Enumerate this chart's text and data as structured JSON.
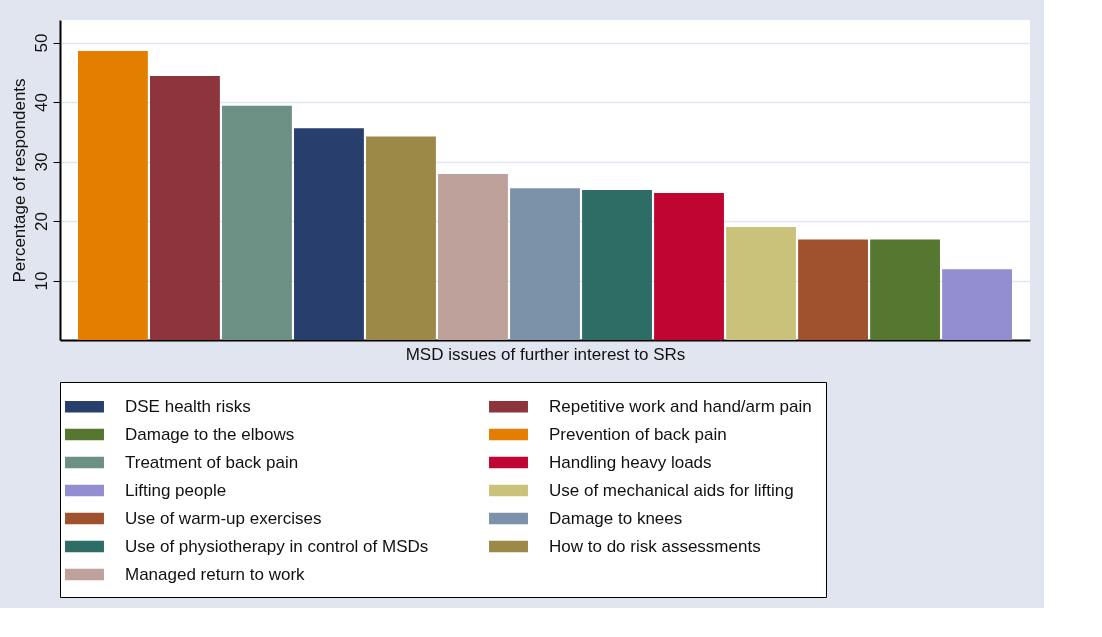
{
  "chart_data": {
    "type": "bar",
    "xlabel": "MSD issues of further interest to SRs",
    "ylabel": "Percentage of respondents",
    "categories": [
      null,
      null,
      null,
      null,
      null,
      null,
      null,
      null,
      null,
      null,
      null,
      null,
      null
    ],
    "ylim": [
      0,
      53.8
    ],
    "yticks": [
      10,
      20,
      30,
      40,
      50
    ],
    "grid": "y",
    "legend": "bottom",
    "series": [
      {
        "name": "DSE health risks",
        "color": "#283f6d",
        "values": [
          null,
          null,
          null,
          35.6,
          null,
          null,
          null,
          null,
          null,
          null,
          null,
          null,
          null
        ]
      },
      {
        "name": "Repetitive work and hand/arm pain",
        "color": "#8e343d",
        "values": [
          null,
          44.4,
          null,
          null,
          null,
          null,
          null,
          null,
          null,
          null,
          null,
          null,
          null
        ]
      },
      {
        "name": "Damage to the elbows",
        "color": "#56772f",
        "values": [
          null,
          null,
          null,
          null,
          null,
          null,
          null,
          null,
          null,
          null,
          null,
          16.9,
          null
        ]
      },
      {
        "name": "Prevention of back pain",
        "color": "#e37e00",
        "values": [
          48.6,
          null,
          null,
          null,
          null,
          null,
          null,
          null,
          null,
          null,
          null,
          null,
          null
        ]
      },
      {
        "name": "Treatment of back pain",
        "color": "#6d9085",
        "values": [
          null,
          null,
          39.4,
          null,
          null,
          null,
          null,
          null,
          null,
          null,
          null,
          null,
          null
        ]
      },
      {
        "name": "Handling heavy loads",
        "color": "#c10532",
        "values": [
          null,
          null,
          null,
          null,
          null,
          null,
          null,
          null,
          24.7,
          null,
          null,
          null,
          null
        ]
      },
      {
        "name": "Lifting people",
        "color": "#938dd2",
        "values": [
          null,
          null,
          null,
          null,
          null,
          null,
          null,
          null,
          null,
          null,
          null,
          null,
          11.9
        ]
      },
      {
        "name": "Use of mechanical aids for lifting",
        "color": "#cac27b",
        "values": [
          null,
          null,
          null,
          null,
          null,
          null,
          null,
          null,
          null,
          19.0,
          null,
          null,
          null
        ]
      },
      {
        "name": "Use of warm-up exercises",
        "color": "#a0522d",
        "values": [
          null,
          null,
          null,
          null,
          null,
          null,
          null,
          null,
          null,
          null,
          16.9,
          null,
          null
        ]
      },
      {
        "name": "Damage to knees",
        "color": "#7b92a8",
        "values": [
          null,
          null,
          null,
          null,
          null,
          null,
          25.5,
          null,
          null,
          null,
          null,
          null,
          null
        ]
      },
      {
        "name": "Use of physiotherapy in control of MSDs",
        "color": "#2d6d66",
        "values": [
          null,
          null,
          null,
          null,
          null,
          null,
          null,
          25.2,
          null,
          null,
          null,
          null,
          null
        ]
      },
      {
        "name": "How to do risk assessments",
        "color": "#9c8847",
        "values": [
          null,
          null,
          null,
          null,
          34.2,
          null,
          null,
          null,
          null,
          null,
          null,
          null,
          null
        ]
      },
      {
        "name": "Managed return to work",
        "color": "#bfa19c",
        "values": [
          null,
          null,
          null,
          null,
          null,
          27.9,
          null,
          null,
          null,
          null,
          null,
          null,
          null
        ]
      }
    ]
  }
}
